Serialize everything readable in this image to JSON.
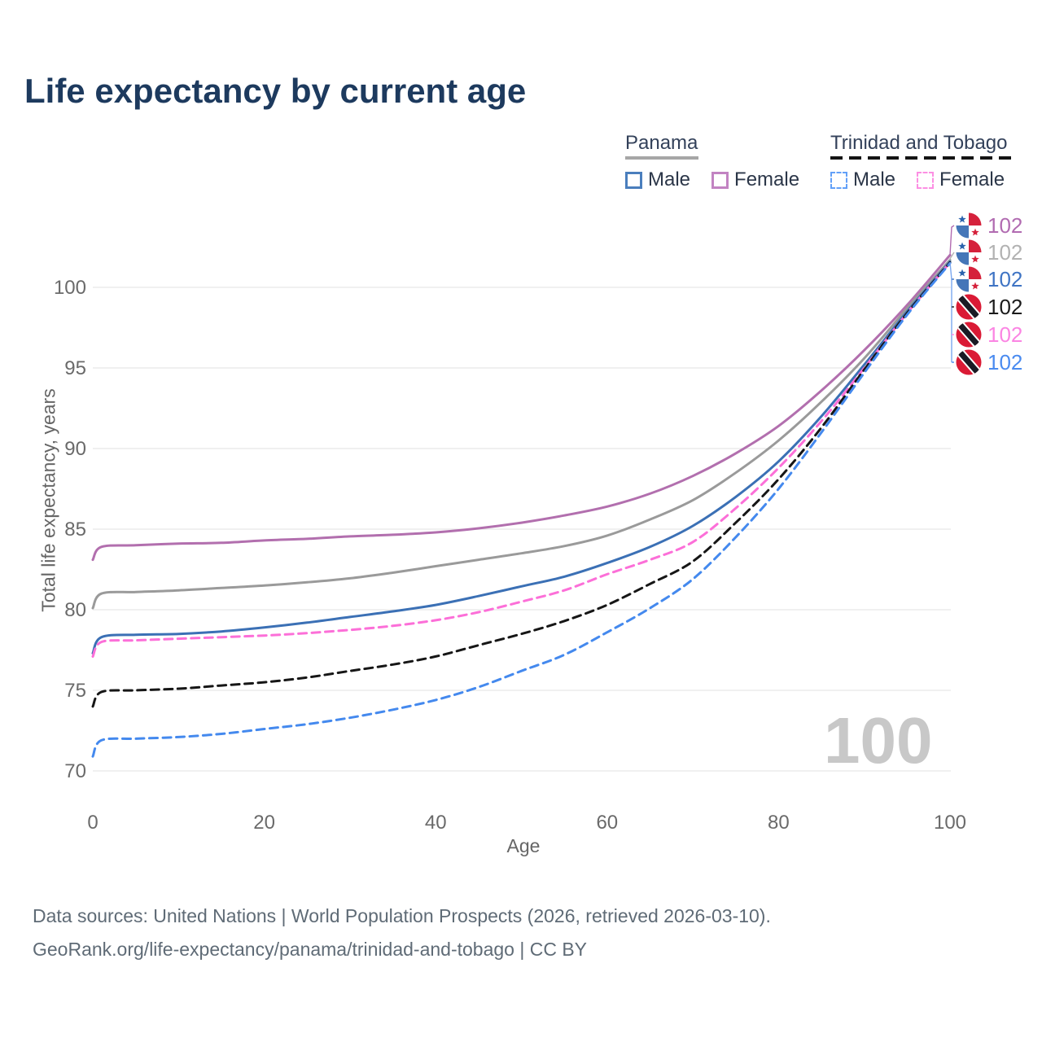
{
  "title": "Life expectancy by current age",
  "legend": {
    "position": "top-right",
    "groups": [
      {
        "title": "Panama",
        "line_style": "solid",
        "underline_color": "#a6a6a6",
        "items": [
          {
            "label": "Male",
            "color": "#4a7ebd",
            "dashed": false
          },
          {
            "label": "Female",
            "color": "#c283c2",
            "dashed": false
          }
        ]
      },
      {
        "title": "Trinidad and Tobago",
        "line_style": "dashed",
        "underline_color": "#141414",
        "items": [
          {
            "label": "Male",
            "color": "#62a0f8",
            "dashed": true
          },
          {
            "label": "Female",
            "color": "#fc8fe3",
            "dashed": true
          }
        ]
      }
    ]
  },
  "right_labels": [
    {
      "flag": "panama",
      "value": "102",
      "color": "#b16bb1"
    },
    {
      "flag": "panama",
      "value": "102",
      "color": "#b2b2b2"
    },
    {
      "flag": "panama",
      "value": "102",
      "color": "#3f74c4"
    },
    {
      "flag": "trinidad-and-tobago",
      "value": "102",
      "color": "#1b1b1b"
    },
    {
      "flag": "trinidad-and-tobago",
      "value": "102",
      "color": "#fb85e3"
    },
    {
      "flag": "trinidad-and-tobago",
      "value": "102",
      "color": "#4a8bf0"
    }
  ],
  "watermark": "100",
  "footer": {
    "line1": "Data sources: United Nations | World Population Prospects (2026, retrieved 2026-03-10).",
    "line2": "GeoRank.org/life-expectancy/panama/trinidad-and-tobago | CC BY"
  },
  "flag_colors": {
    "panama": {
      "red": "#d5213b",
      "blue": "#4576b8",
      "star_blue": "#2b63ad",
      "white": "#ffffff"
    },
    "trinidad_and_tobago": {
      "red": "#da1a35",
      "black": "#1a1a24",
      "white": "#ffffff"
    }
  },
  "chart_data": {
    "type": "line",
    "title": "Life expectancy by current age",
    "xlabel": "Age",
    "ylabel": "Total life expectancy, years",
    "xlim": [
      0,
      100
    ],
    "ylim": [
      69.5,
      103
    ],
    "xticks": [
      0,
      20,
      40,
      60,
      80,
      100
    ],
    "yticks": [
      70,
      75,
      80,
      85,
      90,
      95,
      100
    ],
    "grid": true,
    "legend_position": "top-right",
    "x": [
      0,
      1,
      5,
      10,
      15,
      20,
      25,
      30,
      35,
      40,
      45,
      50,
      55,
      60,
      65,
      70,
      75,
      80,
      85,
      90,
      95,
      100
    ],
    "series": [
      {
        "name": "Panama Female",
        "country": "Panama",
        "sex": "Female",
        "color": "#b26fae",
        "dashed": false,
        "values": [
          83.1,
          83.9,
          84.0,
          84.1,
          84.15,
          84.3,
          84.4,
          84.55,
          84.65,
          84.8,
          85.05,
          85.4,
          85.85,
          86.4,
          87.2,
          88.3,
          89.7,
          91.4,
          93.6,
          96.1,
          98.9,
          102
        ]
      },
      {
        "name": "Panama Total",
        "country": "Panama",
        "sex": "Both",
        "color": "#9a9a9a",
        "dashed": false,
        "values": [
          80.1,
          81.0,
          81.1,
          81.2,
          81.35,
          81.5,
          81.7,
          81.95,
          82.3,
          82.7,
          83.1,
          83.5,
          83.95,
          84.6,
          85.6,
          86.8,
          88.5,
          90.5,
          92.9,
          95.6,
          98.7,
          102
        ]
      },
      {
        "name": "Panama Male",
        "country": "Panama",
        "sex": "Male",
        "color": "#3b70b5",
        "dashed": false,
        "values": [
          77.3,
          78.3,
          78.45,
          78.5,
          78.65,
          78.9,
          79.2,
          79.55,
          79.9,
          80.3,
          80.85,
          81.45,
          82.05,
          82.9,
          83.9,
          85.2,
          87.0,
          89.2,
          92.0,
          95.2,
          98.5,
          102
        ]
      },
      {
        "name": "Trinidad and Tobago Female",
        "country": "Trinidad and Tobago",
        "sex": "Female",
        "color": "#fc6fd8",
        "dashed": true,
        "values": [
          77.1,
          78.0,
          78.1,
          78.2,
          78.3,
          78.4,
          78.55,
          78.75,
          79.0,
          79.35,
          79.85,
          80.5,
          81.2,
          82.2,
          83.1,
          84.2,
          86.3,
          88.8,
          91.7,
          95.0,
          98.4,
          102
        ]
      },
      {
        "name": "Trinidad and Tobago Total",
        "country": "Trinidad and Tobago",
        "sex": "Both",
        "color": "#161616",
        "dashed": true,
        "values": [
          74.0,
          74.9,
          75.0,
          75.1,
          75.3,
          75.5,
          75.8,
          76.2,
          76.6,
          77.1,
          77.8,
          78.5,
          79.3,
          80.3,
          81.6,
          83.0,
          85.4,
          88.1,
          91.3,
          94.9,
          98.4,
          102
        ]
      },
      {
        "name": "Trinidad and Tobago Male",
        "country": "Trinidad and Tobago",
        "sex": "Male",
        "color": "#4489ee",
        "dashed": true,
        "values": [
          70.9,
          71.9,
          72.0,
          72.1,
          72.3,
          72.6,
          72.9,
          73.3,
          73.8,
          74.4,
          75.2,
          76.2,
          77.2,
          78.6,
          80.1,
          81.9,
          84.5,
          87.5,
          91.0,
          94.7,
          98.3,
          102
        ]
      }
    ]
  }
}
